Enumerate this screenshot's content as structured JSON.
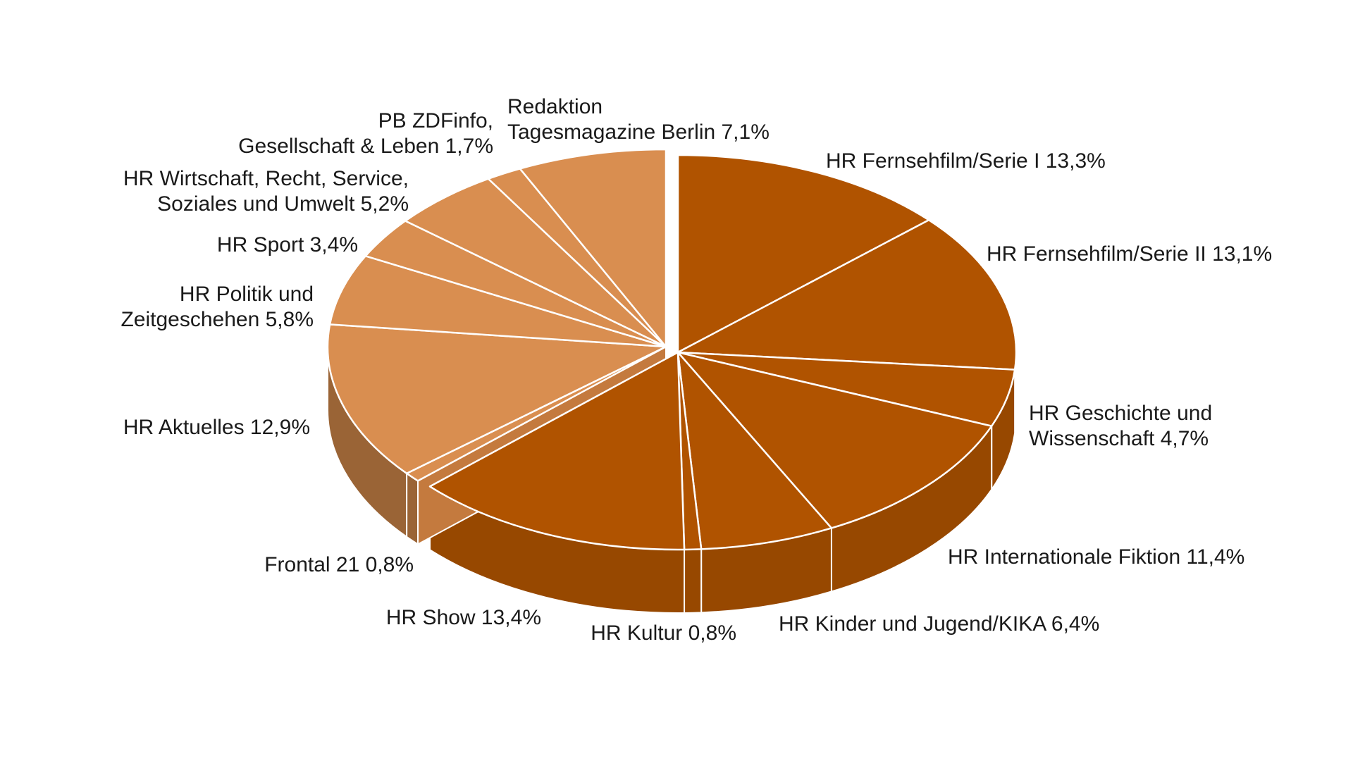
{
  "chart_data": {
    "type": "pie",
    "style": "3d",
    "slices": [
      {
        "name": "HR Fernsehfilm/Serie I",
        "value": 13.3,
        "label_lines": [
          "HR Fernsehfilm/Serie I 13,3%"
        ],
        "group": "dark",
        "color": "#B05300"
      },
      {
        "name": "HR Fernsehfilm/Serie II",
        "value": 13.1,
        "label_lines": [
          "HR Fernsehfilm/Serie II 13,1%"
        ],
        "group": "dark",
        "color": "#B05300"
      },
      {
        "name": "HR Geschichte und Wissenschaft",
        "value": 4.7,
        "label_lines": [
          "HR Geschichte und",
          "Wissenschaft 4,7%"
        ],
        "group": "dark",
        "color": "#B05300"
      },
      {
        "name": "HR Internationale Fiktion",
        "value": 11.4,
        "label_lines": [
          "HR Internationale Fiktion 11,4%"
        ],
        "group": "dark",
        "color": "#B05300"
      },
      {
        "name": "HR Kinder und Jugend/KIKA",
        "value": 6.4,
        "label_lines": [
          "HR Kinder und Jugend/KIKA  6,4%"
        ],
        "group": "dark",
        "color": "#B05300"
      },
      {
        "name": "HR Kultur",
        "value": 0.8,
        "label_lines": [
          "HR Kultur  0,8%"
        ],
        "group": "dark",
        "color": "#B05300"
      },
      {
        "name": "HR Show",
        "value": 13.4,
        "label_lines": [
          "HR Show 13,4%"
        ],
        "group": "dark",
        "color": "#B05300"
      },
      {
        "name": "Frontal 21",
        "value": 0.8,
        "label_lines": [
          "Frontal 21  0,8%"
        ],
        "group": "light",
        "color": "#D98E50"
      },
      {
        "name": "HR Aktuelles",
        "value": 12.9,
        "label_lines": [
          "HR Aktuelles  12,9%"
        ],
        "group": "light",
        "color": "#D98E50"
      },
      {
        "name": "HR Politik und Zeitgeschehen",
        "value": 5.8,
        "label_lines": [
          "HR Politik und",
          "Zeitgeschehen 5,8%"
        ],
        "group": "light",
        "color": "#D98E50"
      },
      {
        "name": "HR Sport",
        "value": 3.4,
        "label_lines": [
          "HR Sport  3,4%"
        ],
        "group": "light",
        "color": "#D98E50"
      },
      {
        "name": "HR Wirtschaft, Recht, Service, Soziales und Umwelt",
        "value": 5.2,
        "label_lines": [
          "HR Wirtschaft, Recht, Service,",
          "Soziales und Umwelt  5,2%"
        ],
        "group": "light",
        "color": "#D98E50"
      },
      {
        "name": "PB ZDFinfo, Gesellschaft & Leben",
        "value": 1.7,
        "label_lines": [
          "PB ZDFinfo,",
          "Gesellschaft & Leben 1,7%"
        ],
        "group": "light",
        "color": "#D98E50"
      },
      {
        "name": "Redaktion Tagesmagazine Berlin",
        "value": 7.1,
        "label_lines": [
          "Redaktion",
          "Tagesmagazine Berlin  7,1%"
        ],
        "group": "light",
        "color": "#D98E50"
      }
    ],
    "colors": {
      "dark_top": "#B05300",
      "dark_side": "#974800",
      "light_top": "#D98E50",
      "light_side": "#9A6436",
      "divider": "#ffffff"
    }
  }
}
